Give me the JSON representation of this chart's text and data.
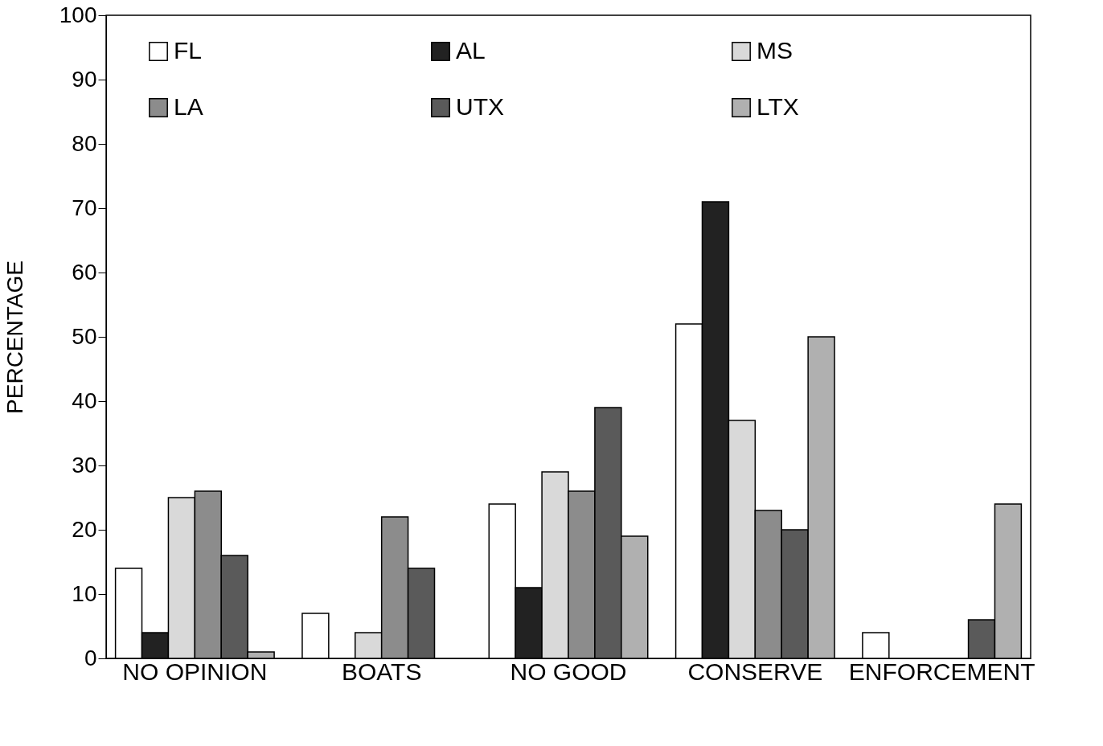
{
  "chart_data": {
    "type": "bar",
    "ylabel": "PERCENTAGE",
    "categories": [
      "NO OPINION",
      "BOATS",
      "NO GOOD",
      "CONSERVE",
      "ENFORCEMENT"
    ],
    "series": [
      {
        "name": "FL",
        "color": "#ffffff",
        "values": [
          14,
          7,
          24,
          52,
          4
        ]
      },
      {
        "name": "AL",
        "color": "#222222",
        "values": [
          4,
          0,
          11,
          71,
          0
        ]
      },
      {
        "name": "MS",
        "color": "#d9d9d9",
        "values": [
          25,
          4,
          29,
          37,
          0
        ]
      },
      {
        "name": "LA",
        "color": "#8c8c8c",
        "values": [
          26,
          22,
          26,
          23,
          0
        ]
      },
      {
        "name": "UTX",
        "color": "#5a5a5a",
        "values": [
          16,
          14,
          39,
          20,
          6
        ]
      },
      {
        "name": "LTX",
        "color": "#b0b0b0",
        "values": [
          1,
          0,
          19,
          50,
          24
        ]
      }
    ],
    "ylim": [
      0,
      100
    ],
    "yticks": [
      0,
      10,
      20,
      30,
      40,
      50,
      60,
      70,
      80,
      90,
      100
    ],
    "grid": false,
    "legend": "top"
  }
}
